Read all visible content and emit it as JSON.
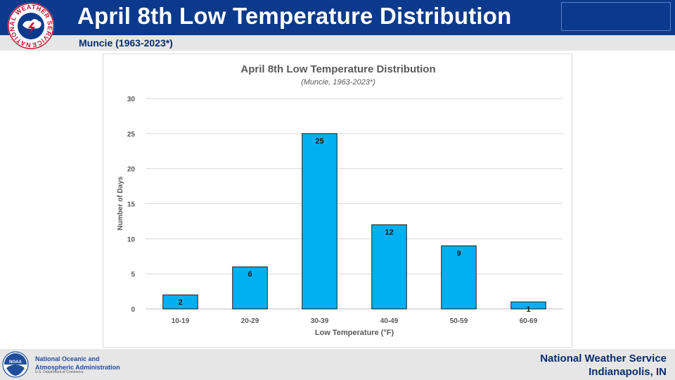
{
  "header": {
    "title": "April 8th Low Temperature Distribution",
    "subtitle": "Muncie (1963-2023*)"
  },
  "logos": {
    "nws_ring_text": "NATIONAL WEATHER SERVICE",
    "noaa_badge": "NOAA"
  },
  "footer": {
    "agency_line1": "National Oceanic and",
    "agency_line2": "Atmospheric Administration",
    "department": "U.S. Department of Commerce",
    "office_line1": "National Weather Service",
    "office_line2": "Indianapolis, IN"
  },
  "colors": {
    "header_bg": "#0b3a8c",
    "bar_fill": "#00b0f0",
    "bar_stroke": "#1a1a1a",
    "text_dark": "#404040"
  },
  "chart_data": {
    "type": "bar",
    "title": "April 8th Low Temperature Distribution",
    "subtitle": "(Muncie, 1963-2023*)",
    "xlabel": "Low Temperature (°F)",
    "ylabel": "Number of Days",
    "categories": [
      "10-19",
      "20-29",
      "30-39",
      "40-49",
      "50-59",
      "60-69"
    ],
    "values": [
      2,
      6,
      25,
      12,
      9,
      1
    ],
    "ylim": [
      0,
      30
    ],
    "yticks": [
      0,
      5,
      10,
      15,
      20,
      25,
      30
    ],
    "grid": true,
    "legend": "none",
    "data_labels": true
  }
}
